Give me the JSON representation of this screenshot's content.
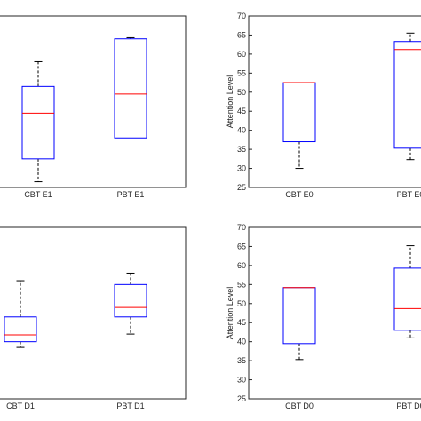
{
  "chart_data": [
    {
      "type": "box",
      "title": "",
      "ylabel": "",
      "ylim": [
        25,
        70
      ],
      "yticks": [],
      "categories": [
        "CBT E1",
        "PBT E1"
      ],
      "boxes": [
        {
          "whisker_low": 26.5,
          "q1": 32.5,
          "median": 44.5,
          "q3": 51.5,
          "whisker_high": 58.0
        },
        {
          "whisker_low": 38.0,
          "q1": 38.0,
          "median": 49.5,
          "q3": 64.0,
          "whisker_high": 64.3
        }
      ],
      "colors": {
        "box": "#0000ff",
        "median": "#ff0000",
        "whisker": "#000000"
      }
    },
    {
      "type": "box",
      "title": "",
      "ylabel": "Attention Level",
      "ylim": [
        25,
        70
      ],
      "yticks": [
        "25",
        "30",
        "35",
        "40",
        "45",
        "50",
        "55",
        "60",
        "65",
        "70"
      ],
      "categories": [
        "CBT E0",
        "PBT E0"
      ],
      "boxes": [
        {
          "whisker_low": 30.0,
          "q1": 37.0,
          "median": 52.5,
          "q3": 52.5,
          "whisker_high": 52.5
        },
        {
          "whisker_low": 32.3,
          "q1": 35.3,
          "median": 61.2,
          "q3": 63.3,
          "whisker_high": 65.5
        }
      ],
      "colors": {
        "box": "#0000ff",
        "median": "#ff0000",
        "whisker": "#000000"
      }
    },
    {
      "type": "box",
      "title": "",
      "ylabel": "",
      "ylim": [
        25,
        70
      ],
      "yticks": [],
      "categories": [
        "CBT D1",
        "PBT D1"
      ],
      "boxes": [
        {
          "whisker_low": 38.5,
          "q1": 40.0,
          "median": 41.8,
          "q3": 46.5,
          "whisker_high": 56.0
        },
        {
          "whisker_low": 42.0,
          "q1": 46.5,
          "median": 49.0,
          "q3": 55.0,
          "whisker_high": 58.0
        }
      ],
      "colors": {
        "box": "#0000ff",
        "median": "#ff0000",
        "whisker": "#000000"
      }
    },
    {
      "type": "box",
      "title": "",
      "ylabel": "Attention Level",
      "ylim": [
        25,
        70
      ],
      "yticks": [
        "25",
        "30",
        "35",
        "40",
        "45",
        "50",
        "55",
        "60",
        "65",
        "70"
      ],
      "categories": [
        "CBT D0",
        "PBT D0"
      ],
      "boxes": [
        {
          "whisker_low": 35.3,
          "q1": 39.5,
          "median": 54.2,
          "q3": 54.2,
          "whisker_high": 54.2
        },
        {
          "whisker_low": 41.0,
          "q1": 43.0,
          "median": 48.7,
          "q3": 59.3,
          "whisker_high": 65.2
        }
      ],
      "colors": {
        "box": "#0000ff",
        "median": "#ff0000",
        "whisker": "#000000"
      }
    }
  ]
}
